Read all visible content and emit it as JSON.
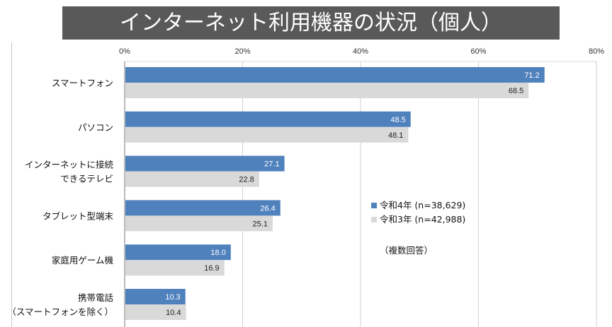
{
  "title": "インターネット利用機器の状況（個人）",
  "colors": {
    "series1": "#4f81bd",
    "series2": "#d9d9d9",
    "title_bg": "#595959",
    "grid": "#d0d0d0"
  },
  "note": "（複数回答）",
  "chart_data": {
    "type": "bar",
    "orientation": "horizontal",
    "title": "インターネット利用機器の状況（個人）",
    "xlabel": "",
    "ylabel": "",
    "xlim": [
      0,
      80
    ],
    "x_ticks": [
      "0%",
      "20%",
      "40%",
      "60%",
      "80%"
    ],
    "x_tick_values": [
      0,
      20,
      40,
      60,
      80
    ],
    "grid": true,
    "legend_position": "center-right",
    "categories": [
      [
        "スマートフォン"
      ],
      [
        "パソコン"
      ],
      [
        "インターネットに接続",
        "できるテレビ"
      ],
      [
        "タブレット型端末"
      ],
      [
        "家庭用ゲーム機"
      ],
      [
        "携帯電話",
        "（スマートフォンを除く）"
      ]
    ],
    "series": [
      {
        "name": "令和4年 (n=38,629)",
        "values": [
          71.2,
          48.5,
          27.1,
          26.4,
          18.0,
          10.3
        ],
        "labels": [
          "71.2",
          "48.5",
          "27.1",
          "26.4",
          "18.0",
          "10.3"
        ]
      },
      {
        "name": "令和3年 (n=42,988)",
        "values": [
          68.5,
          48.1,
          22.8,
          25.1,
          16.9,
          10.4
        ],
        "labels": [
          "68.5",
          "48.1",
          "22.8",
          "25.1",
          "16.9",
          "10.4"
        ]
      }
    ],
    "annotations": [
      "（複数回答）"
    ]
  }
}
